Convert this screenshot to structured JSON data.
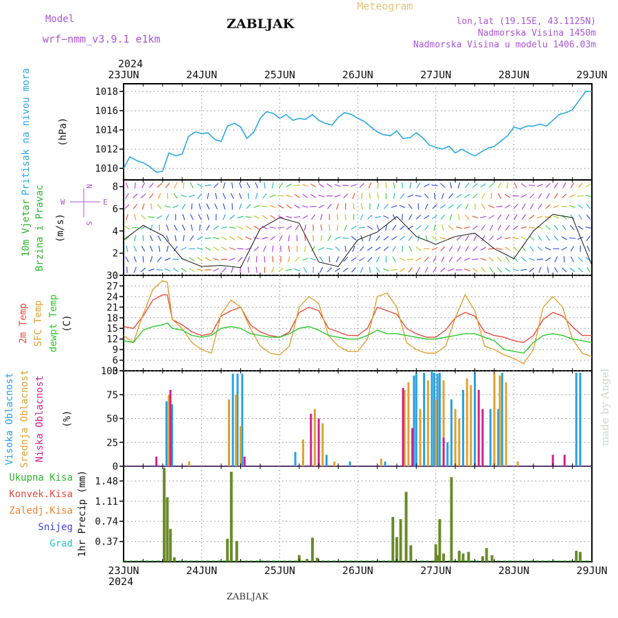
{
  "header": {
    "model_label": "Model",
    "model_name": "wrf−nmm_v3.9.1  e1km",
    "station": "ZABLJAK",
    "product": "Meteogram",
    "lonlat": "lon,lat (19.15E, 43.1125N)",
    "elevation": "Nadmorska Visina 1450m",
    "model_elevation": "Nadmorska Visina u modelu 1406.03m",
    "year_top": "2024",
    "year_bottom": "2024",
    "footer": "ZABLJAK",
    "watermark": "made by Angel"
  },
  "dates": [
    "23JUN",
    "24JUN",
    "25JUN",
    "26JUN",
    "27JUN",
    "28JUN",
    "29JUN"
  ],
  "panel_labels": {
    "pressure": [
      "Pritisak na nivou mora",
      "(hPa)"
    ],
    "wind": [
      "10m Vjetar",
      "Brzina i Pravac",
      "(m/s)"
    ],
    "compass": [
      "N",
      "W",
      "E",
      "S"
    ],
    "temperature": [
      "2m Temp",
      "SFC Temp",
      "dewpt Temp",
      "(C)"
    ],
    "cloud": [
      "Visoka Oblacnost",
      "Srednja Oblacnost",
      "Niska Oblacnost",
      "(%)"
    ],
    "precip_legend": [
      "Ukupna Kisa",
      "Konvek.Kisa",
      "Zaledj.Kisa",
      "Snijeg",
      "Grad"
    ],
    "precip_axis": "1hr Precip (mm)"
  },
  "colors": {
    "pressure": "#29a8e0",
    "wind_title": "#2ab52a",
    "temp2m": "#e84a3c",
    "sfc": "#e0a030",
    "dewpt": "#2ac82a",
    "cloud_high": "#29a0e0",
    "cloud_mid": "#e0a030",
    "cloud_low": "#d0208a",
    "model": "#a855d6",
    "meteogram": "#e8c27a",
    "precip_total": "#2ab52a",
    "precip_conv": "#e84a3c",
    "precip_frz": "#f08030",
    "snow": "#4040e0",
    "hail": "#20c8c8"
  },
  "chart_data": [
    {
      "type": "line",
      "name": "pressure",
      "x_range_days": [
        0,
        6
      ],
      "ylim": [
        1008.8,
        1018.8
      ],
      "yticks": [
        1010,
        1012,
        1014,
        1016,
        1018
      ],
      "x": [
        0,
        0.08,
        0.17,
        0.25,
        0.33,
        0.42,
        0.5,
        0.58,
        0.67,
        0.75,
        0.83,
        0.92,
        1.0,
        1.08,
        1.17,
        1.25,
        1.33,
        1.42,
        1.5,
        1.58,
        1.67,
        1.75,
        1.83,
        1.92,
        2.0,
        2.08,
        2.17,
        2.25,
        2.33,
        2.42,
        2.5,
        2.58,
        2.67,
        2.75,
        2.83,
        2.92,
        3.0,
        3.08,
        3.17,
        3.25,
        3.33,
        3.42,
        3.5,
        3.58,
        3.67,
        3.75,
        3.83,
        3.92,
        4.0,
        4.08,
        4.17,
        4.25,
        4.33,
        4.42,
        4.5,
        4.58,
        4.67,
        4.75,
        4.83,
        4.92,
        5.0,
        5.08,
        5.17,
        5.25,
        5.33,
        5.42,
        5.5,
        5.58,
        5.67,
        5.75,
        5.83,
        5.92,
        6.0
      ],
      "y": [
        1010.0,
        1011.2,
        1010.8,
        1010.6,
        1010.2,
        1009.6,
        1009.7,
        1011.6,
        1011.3,
        1011.5,
        1013.3,
        1013.8,
        1013.6,
        1013.7,
        1013.0,
        1012.8,
        1014.4,
        1014.7,
        1014.3,
        1013.1,
        1013.8,
        1015.2,
        1015.9,
        1015.7,
        1015.2,
        1015.6,
        1015.0,
        1015.2,
        1015.1,
        1015.6,
        1015.0,
        1014.7,
        1014.5,
        1015.3,
        1015.8,
        1015.6,
        1015.2,
        1014.9,
        1014.3,
        1013.8,
        1013.5,
        1013.4,
        1013.9,
        1013.1,
        1013.2,
        1013.7,
        1013.2,
        1012.4,
        1012.2,
        1012.0,
        1012.3,
        1011.6,
        1012.0,
        1011.6,
        1011.3,
        1011.7,
        1012.1,
        1012.3,
        1012.8,
        1013.4,
        1014.3,
        1014.1,
        1014.4,
        1014.4,
        1014.6,
        1014.4,
        1015.0,
        1015.6,
        1015.8,
        1016.1,
        1017.0,
        1018.0,
        1018.0
      ]
    },
    {
      "type": "line",
      "name": "wind",
      "ylim": [
        0,
        8.6
      ],
      "yticks": [
        0,
        2,
        4,
        6,
        8
      ],
      "x": [
        0,
        0.25,
        0.5,
        0.75,
        1.0,
        1.25,
        1.5,
        1.75,
        2.0,
        2.25,
        2.5,
        2.75,
        3.0,
        3.25,
        3.5,
        3.75,
        4.0,
        4.25,
        4.5,
        4.75,
        5.0,
        5.25,
        5.5,
        5.75,
        6.0
      ],
      "y": [
        3.2,
        4.5,
        3.6,
        1.5,
        0.8,
        0.9,
        0.7,
        4.2,
        5.2,
        4.7,
        1.2,
        0.8,
        3.2,
        3.9,
        5.3,
        3.5,
        2.8,
        3.5,
        3.8,
        2.4,
        1.5,
        4.0,
        5.5,
        5.2,
        0.9
      ]
    },
    {
      "type": "line",
      "name": "temperature",
      "ylim": [
        3,
        30
      ],
      "yticks": [
        3,
        6,
        9,
        12,
        15,
        18,
        21,
        24,
        27,
        30
      ],
      "x": [
        0,
        0.125,
        0.25,
        0.375,
        0.5,
        0.56,
        0.625,
        0.75,
        0.875,
        1.0,
        1.125,
        1.25,
        1.375,
        1.5,
        1.625,
        1.75,
        1.875,
        2.0,
        2.125,
        2.25,
        2.375,
        2.5,
        2.625,
        2.75,
        2.875,
        3.0,
        3.125,
        3.25,
        3.375,
        3.5,
        3.625,
        3.75,
        3.875,
        4.0,
        4.125,
        4.25,
        4.375,
        4.5,
        4.625,
        4.75,
        4.875,
        5.0,
        5.125,
        5.25,
        5.375,
        5.5,
        5.625,
        5.75,
        5.875,
        6.0
      ],
      "series": [
        {
          "name": "2m Temp",
          "values": [
            15.5,
            15.0,
            18.5,
            23.0,
            24.5,
            24.5,
            17.5,
            16.0,
            14.0,
            13.0,
            13.5,
            18.5,
            20.0,
            21.0,
            16.0,
            14.0,
            13.0,
            12.5,
            14.0,
            19.5,
            21.0,
            20.0,
            15.0,
            14.0,
            13.0,
            13.0,
            15.0,
            21.0,
            20.0,
            19.0,
            15.0,
            13.5,
            12.5,
            12.5,
            14.5,
            18.0,
            19.5,
            18.5,
            14.0,
            13.0,
            12.5,
            11.5,
            11.0,
            13.0,
            17.5,
            19.5,
            18.5,
            15.5,
            13.0,
            13.0
          ]
        },
        {
          "name": "SFC Temp",
          "values": [
            13.0,
            11.0,
            19.0,
            26.0,
            28.5,
            28.0,
            17.5,
            15.0,
            11.0,
            9.0,
            8.0,
            19.0,
            23.0,
            21.0,
            15.0,
            10.0,
            8.0,
            7.5,
            10.0,
            21.0,
            24.0,
            22.0,
            13.0,
            10.0,
            8.5,
            8.5,
            12.0,
            24.0,
            25.0,
            21.0,
            11.0,
            9.0,
            8.0,
            8.0,
            10.0,
            18.0,
            24.5,
            20.0,
            10.0,
            9.0,
            7.5,
            6.5,
            5.0,
            9.0,
            21.0,
            24.0,
            21.0,
            12.0,
            8.0,
            7.0
          ]
        },
        {
          "name": "dewpt Temp",
          "values": [
            11.5,
            11.0,
            14.5,
            15.5,
            16.0,
            16.5,
            15.0,
            14.5,
            13.0,
            12.5,
            13.0,
            15.0,
            15.5,
            15.0,
            13.5,
            13.0,
            12.5,
            12.5,
            13.5,
            15.0,
            15.5,
            14.5,
            13.0,
            12.5,
            12.0,
            12.0,
            13.0,
            14.5,
            13.5,
            13.5,
            13.0,
            12.5,
            12.0,
            12.0,
            12.5,
            13.0,
            13.5,
            13.5,
            12.5,
            11.5,
            9.0,
            8.5,
            8.0,
            11.0,
            13.0,
            13.5,
            13.0,
            12.0,
            11.5,
            11.0
          ]
        }
      ]
    },
    {
      "type": "bar",
      "name": "cloud",
      "ylim": [
        0,
        100
      ],
      "yticks": [
        0,
        25,
        50,
        75,
        100
      ],
      "series": [
        {
          "name": "Visoka Oblacnost",
          "x": [
            0.55,
            0.62,
            1.4,
            1.46,
            1.52,
            2.2,
            2.6,
            2.9,
            3.35,
            3.72,
            3.75,
            3.85,
            3.95,
            3.98,
            4.02,
            4.05,
            4.15,
            4.2,
            4.35,
            4.5,
            4.7,
            4.8,
            4.85,
            5.8,
            5.85
          ],
          "values": [
            68,
            65,
            97,
            97,
            97,
            15,
            12,
            5,
            5,
            95,
            98,
            98,
            100,
            98,
            97,
            98,
            25,
            70,
            80,
            98,
            60,
            60,
            98,
            98,
            98
          ]
        },
        {
          "name": "Srednja Oblacnost",
          "x": [
            0.58,
            0.84,
            1.35,
            1.44,
            1.5,
            2.3,
            2.45,
            2.55,
            2.7,
            3.3,
            3.6,
            3.65,
            3.8,
            3.9,
            4.0,
            4.1,
            4.25,
            4.3,
            4.4,
            4.45,
            4.75,
            4.82,
            4.9,
            5.05
          ],
          "values": [
            75,
            5,
            70,
            75,
            42,
            28,
            60,
            45,
            5,
            8,
            80,
            88,
            60,
            90,
            70,
            90,
            60,
            50,
            92,
            85,
            98,
            95,
            88,
            5
          ]
        },
        {
          "name": "Niska Oblacnost",
          "x": [
            0.42,
            0.6,
            1.55,
            2.4,
            2.5,
            3.58,
            3.7,
            4.1,
            4.55,
            4.6,
            5.5,
            5.65
          ],
          "values": [
            10,
            80,
            10,
            55,
            50,
            82,
            40,
            30,
            80,
            60,
            12,
            12
          ]
        }
      ]
    },
    {
      "type": "bar",
      "name": "precip",
      "ylim": [
        0,
        1.75
      ],
      "yticks": [
        0.37,
        0.74,
        1.11,
        1.48
      ],
      "series": [
        {
          "name": "Ukupna Kisa",
          "x": [
            0.52,
            0.56,
            0.6,
            0.65,
            1.33,
            1.38,
            1.45,
            2.25,
            2.35,
            2.42,
            2.48,
            3.45,
            3.5,
            3.55,
            3.62,
            3.68,
            4.0,
            4.02,
            4.05,
            4.1,
            4.2,
            4.3,
            4.35,
            4.42,
            4.6,
            4.65,
            4.72,
            5.8,
            5.85
          ],
          "values": [
            1.72,
            1.18,
            0.6,
            0.08,
            0.42,
            1.65,
            0.38,
            0.12,
            0.05,
            0.44,
            0.07,
            0.82,
            0.45,
            0.78,
            1.28,
            0.3,
            0.32,
            0.12,
            0.78,
            0.15,
            1.55,
            0.2,
            0.15,
            0.18,
            0.1,
            0.25,
            0.12,
            0.2,
            0.18
          ]
        }
      ]
    }
  ]
}
